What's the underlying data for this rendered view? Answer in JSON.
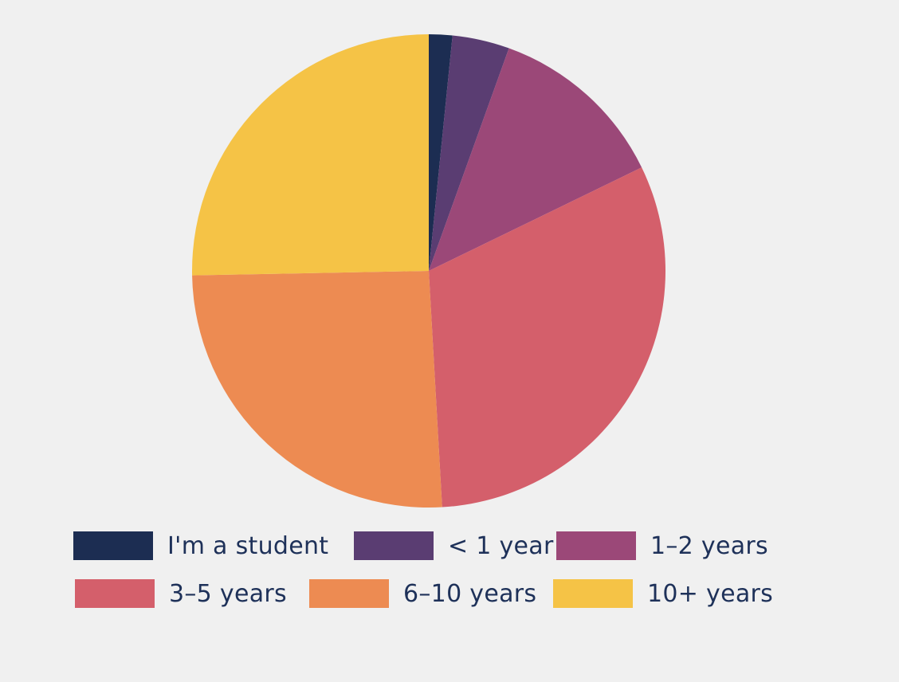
{
  "chart_data": {
    "type": "pie",
    "title": "",
    "start_angle": "12 o'clock",
    "direction": "clockwise",
    "legend_placement": "bottom",
    "slices": [
      {
        "label": "I'm a student",
        "value": 1.6,
        "color": "#1c2d52"
      },
      {
        "label": "< 1 year",
        "value": 3.9,
        "color": "#5a3d72"
      },
      {
        "label": "1–2 years",
        "value": 12.3,
        "color": "#9b4878"
      },
      {
        "label": "3–5 years",
        "value": 31.3,
        "color": "#d45f6b"
      },
      {
        "label": "6–10 years",
        "value": 25.6,
        "color": "#ed8b52"
      },
      {
        "label": "10+ years",
        "value": 25.3,
        "color": "#f5c346"
      }
    ]
  },
  "legend": {
    "text_color": "#1e3159",
    "items": [
      {
        "label": "I'm a student",
        "color": "#1c2d52"
      },
      {
        "label": "< 1 year",
        "color": "#5a3d72"
      },
      {
        "label": "1–2 years",
        "color": "#9b4878"
      },
      {
        "label": "3–5 years",
        "color": "#d45f6b"
      },
      {
        "label": "6–10 years",
        "color": "#ed8b52"
      },
      {
        "label": "10+ years",
        "color": "#f5c346"
      }
    ]
  }
}
